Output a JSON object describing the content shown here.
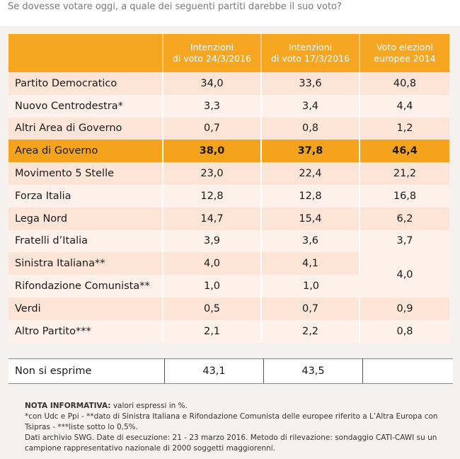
{
  "question": "Se dovesse votare oggi, a quale dei seguenti partiti darebbe il suo voto?",
  "columns": [
    "",
    "Intenzioni\ndi voto 24/3/2016",
    "Intenzioni\ndi voto 17/3/2016",
    "Voto elezioni\neuropee 2014"
  ],
  "rows": [
    {
      "party": "Partito Democratico",
      "v1": "34,0",
      "v2": "33,6",
      "v3": "40,8"
    },
    {
      "party": "Nuovo Centrodestra*",
      "v1": "3,3",
      "v2": "3,4",
      "v3": "4,4"
    },
    {
      "party": "Altri Area di Governo",
      "v1": "0,7",
      "v2": "0,8",
      "v3": "1,2"
    },
    {
      "party": "Area di Governo",
      "v1": "38,0",
      "v2": "37,8",
      "v3": "46,4"
    },
    {
      "party": "Movimento 5 Stelle",
      "v1": "23,0",
      "v2": "22,4",
      "v3": "21,2"
    },
    {
      "party": "Forza Italia",
      "v1": "12,8",
      "v2": "12,8",
      "v3": "16,8"
    },
    {
      "party": "Lega Nord",
      "v1": "14,7",
      "v2": "15,4",
      "v3": "6,2"
    },
    {
      "party": "Fratelli d’Italia",
      "v1": "3,9",
      "v2": "3,6",
      "v3": "3,7"
    },
    {
      "party": "Sinistra Italiana**",
      "v1": "4,0",
      "v2": "4,1",
      "v3": "4,0"
    },
    {
      "party": "Rifondazione Comunista**",
      "v1": "1,0",
      "v2": "1,0"
    },
    {
      "party": "Verdi",
      "v1": "0,5",
      "v2": "0,7",
      "v3": "0,9"
    },
    {
      "party": "Altro Partito***",
      "v1": "2,1",
      "v2": "2,2",
      "v3": "0,8"
    }
  ],
  "footer_row": {
    "label": "Non si esprime",
    "v1": "43,1",
    "v2": "43,5",
    "v3": ""
  },
  "notes": {
    "heading": "NOTA INFORMATIVA:",
    "heading_text": " valori espressi in %.",
    "line1": "*con Udc e Ppi  - **dato di Sinistra Italiana e Rifondazione Comunista delle europee riferito a L’Altra Europa con Tsipras - ***liste sotto lo 0,5%.",
    "line2": "Dati archivio SWG. Date di esecuzione: 21 - 23 marzo 2016. Metodo di rilevazione: sondaggio CATI-CAWI su un campione rappresentativo nazionale di 2000 soggetti maggiorenni."
  },
  "colors": {
    "header_orange": "#f7a622",
    "highlight_orange": "#f5a31c",
    "row_light": "#fdf1ea",
    "row_peach": "#fce5d6"
  }
}
